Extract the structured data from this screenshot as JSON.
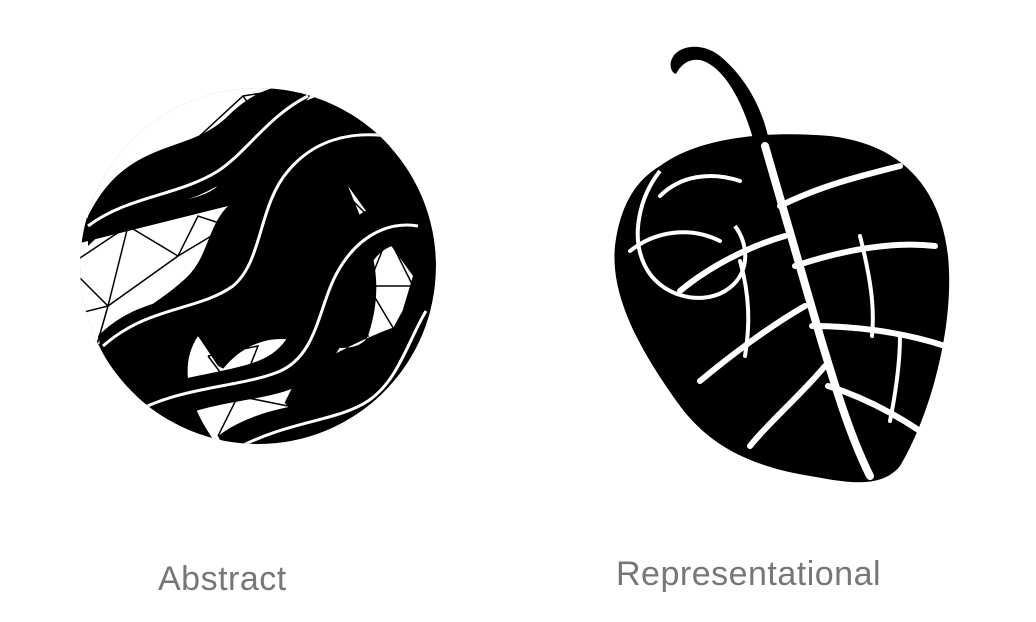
{
  "captions": {
    "abstract": "Abstract",
    "representational": "Representational"
  },
  "illustrations": {
    "abstract_icon": "abstract-wave-circle-icon",
    "leaf_icon": "leaf-icon",
    "fill_color": "#000000",
    "background_color": "#ffffff",
    "caption_color": "#777777"
  }
}
